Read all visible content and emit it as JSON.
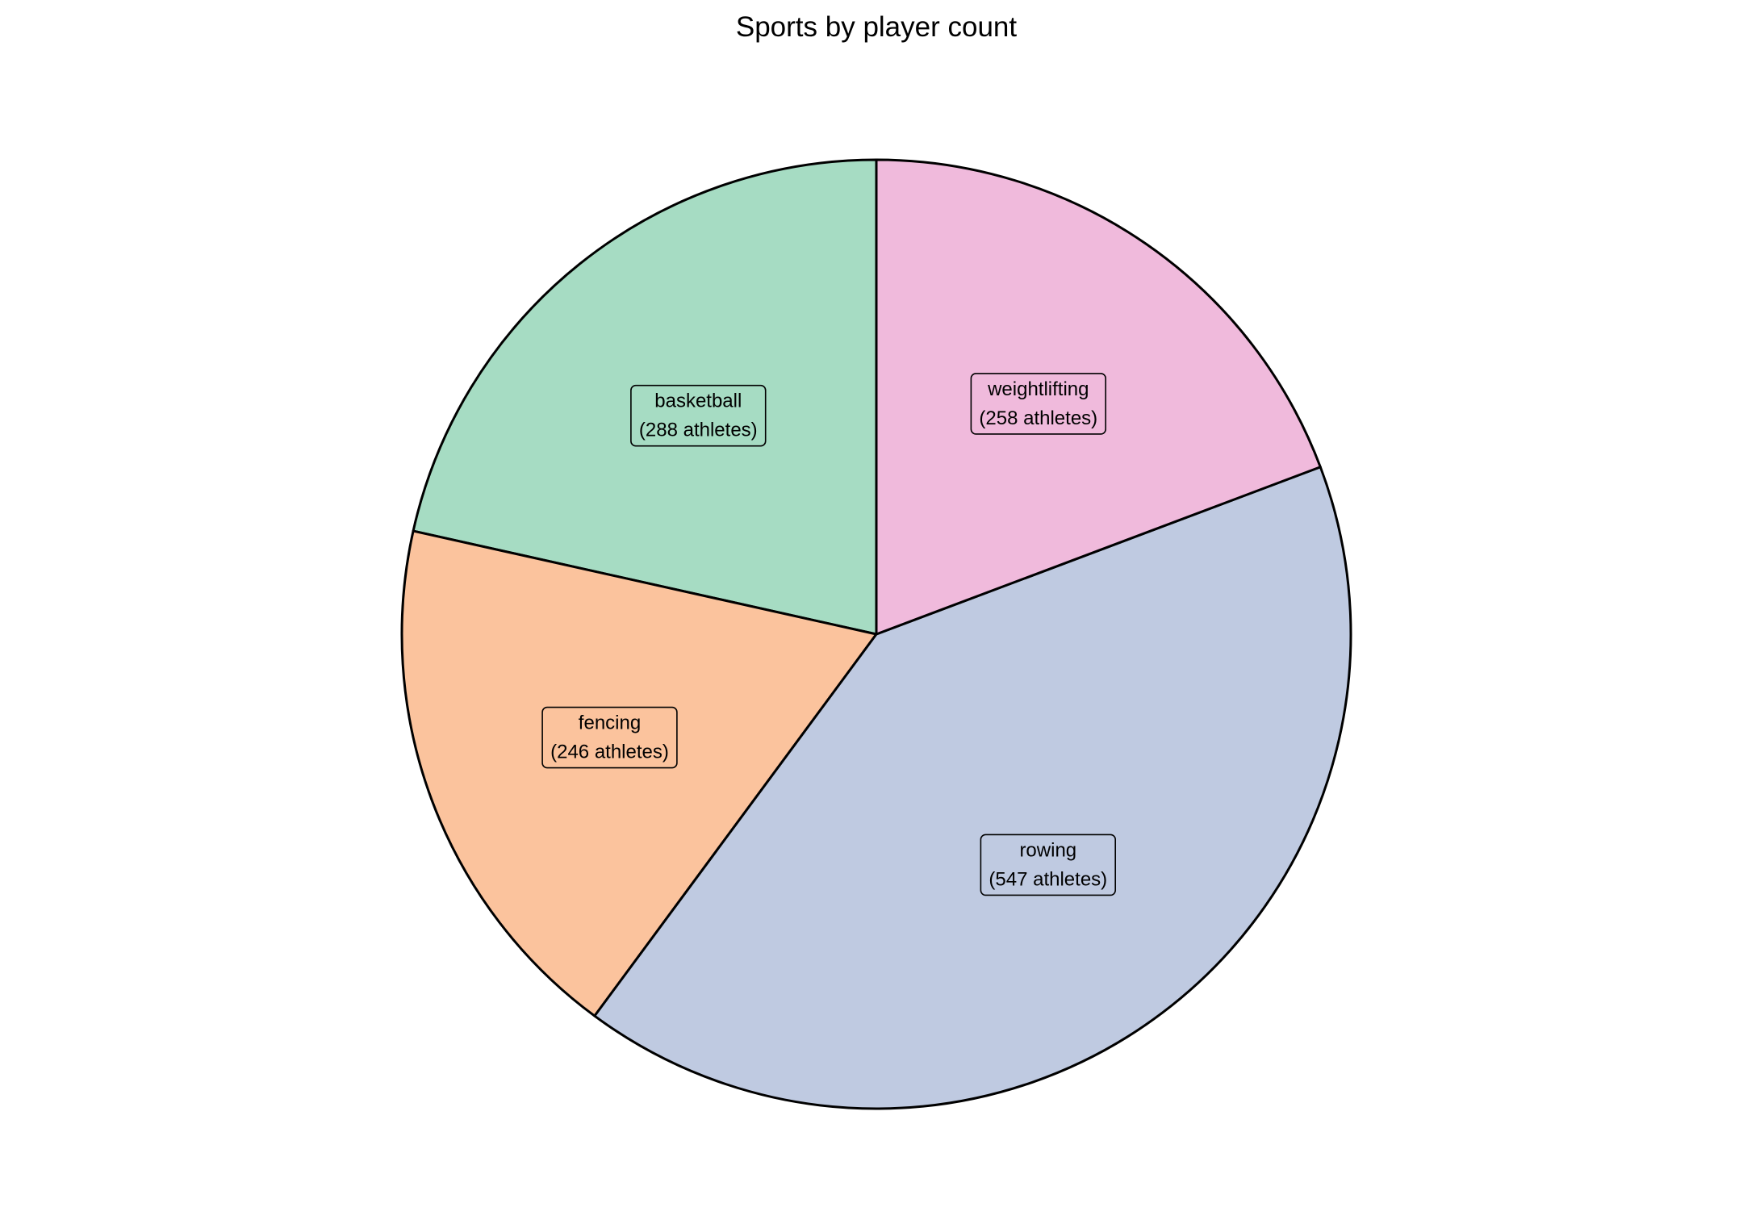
{
  "chart_data": {
    "type": "pie",
    "title": "Sports by player count",
    "start_angle_deg": 90,
    "direction": "counterclockwise",
    "slices": [
      {
        "label": "basketball",
        "value": 288,
        "value_text": "(288 athletes)",
        "color": "#a6dcc3"
      },
      {
        "label": "fencing",
        "value": 246,
        "value_text": "(246 athletes)",
        "color": "#fbc39d"
      },
      {
        "label": "rowing",
        "value": 547,
        "value_text": "(547 athletes)",
        "color": "#bfcae1"
      },
      {
        "label": "weightlifting",
        "value": 258,
        "value_text": "(258 athletes)",
        "color": "#f0badc"
      }
    ],
    "edge_color": "#000000",
    "legend": "none"
  }
}
